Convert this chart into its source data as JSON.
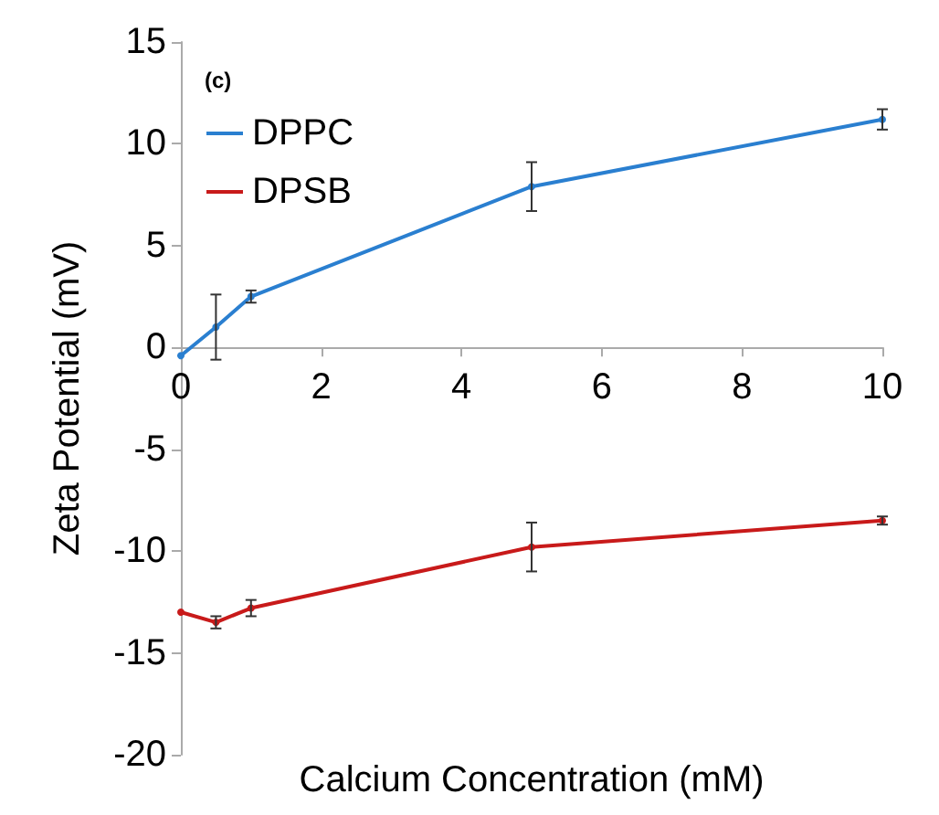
{
  "chart_data": {
    "type": "line",
    "xlabel": "Calcium Concentration (mM)",
    "ylabel": "Zeta Potential (mV)",
    "annotations": [
      "(c)"
    ],
    "x": [
      0,
      0.5,
      1,
      5,
      10
    ],
    "series": [
      {
        "name": "DPPC",
        "color": "#2a7fd0",
        "values": [
          -0.4,
          1.0,
          2.5,
          7.9,
          11.2
        ],
        "errors": [
          null,
          1.6,
          0.3,
          1.2,
          0.5
        ]
      },
      {
        "name": "DPSB",
        "color": "#c81a1a",
        "values": [
          -13.0,
          -13.5,
          -12.8,
          -9.8,
          -8.5
        ],
        "errors": [
          null,
          0.3,
          0.4,
          1.2,
          0.2
        ]
      }
    ],
    "xlim": [
      0,
      10
    ],
    "xticks": [
      0,
      2,
      4,
      6,
      8,
      10
    ],
    "ylim": [
      -20,
      15
    ],
    "yticks": [
      -20,
      -15,
      -10,
      -5,
      0,
      5,
      10,
      15
    ],
    "grid": false,
    "legend": "top left",
    "marker": "circle",
    "line_style": "solid"
  }
}
